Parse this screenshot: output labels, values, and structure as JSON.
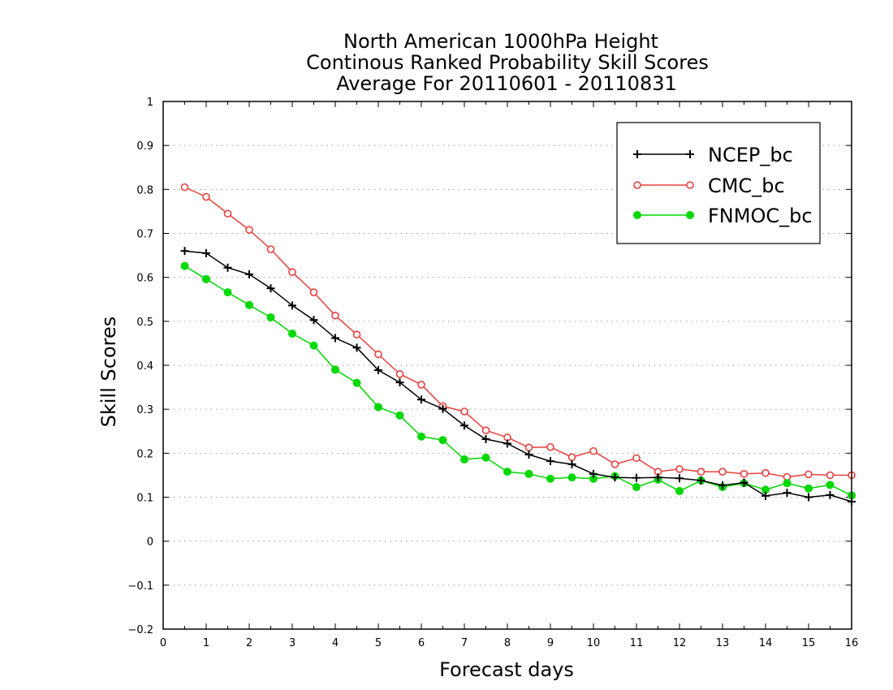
{
  "chart_data": {
    "type": "line",
    "title": [
      "North American 1000hPa Height",
      "Continous Ranked Probability Skill Scores",
      "Average For 20110601 - 20110831"
    ],
    "xlabel": "Forecast days",
    "ylabel": "Skill Scores",
    "xlim": [
      0,
      16
    ],
    "ylim": [
      -0.2,
      1
    ],
    "xticks": [
      0,
      1,
      2,
      3,
      4,
      5,
      6,
      7,
      8,
      9,
      10,
      11,
      12,
      13,
      14,
      15,
      16
    ],
    "yticks": [
      -0.2,
      -0.1,
      0,
      0.1,
      0.2,
      0.3,
      0.4,
      0.5,
      0.6,
      0.7,
      0.8,
      0.9,
      1
    ],
    "ytick_labels": [
      "−0.2",
      "−0.1",
      "0",
      "0.1",
      "0.2",
      "0.3",
      "0.4",
      "0.5",
      "0.6",
      "0.7",
      "0.8",
      "0.9",
      "1"
    ],
    "grid": "horizontal dotted",
    "legend_position": "top-right",
    "x": [
      0.5,
      1.0,
      1.5,
      2.0,
      2.5,
      3.0,
      3.5,
      4.0,
      4.5,
      5.0,
      5.5,
      6.0,
      6.5,
      7.0,
      7.5,
      8.0,
      8.5,
      9.0,
      9.5,
      10.0,
      10.5,
      11.0,
      11.5,
      12.0,
      12.5,
      13.0,
      13.5,
      14.0,
      14.5,
      15.0,
      15.5,
      16.0
    ],
    "series": [
      {
        "name": "NCEP_bc",
        "color": "#000000",
        "marker": "plus",
        "values": [
          0.66,
          0.655,
          0.622,
          0.607,
          0.575,
          0.536,
          0.503,
          0.462,
          0.44,
          0.389,
          0.361,
          0.322,
          0.301,
          0.263,
          0.232,
          0.222,
          0.197,
          0.182,
          0.175,
          0.153,
          0.145,
          0.144,
          0.145,
          0.143,
          0.138,
          0.127,
          0.133,
          0.103,
          0.11,
          0.1,
          0.105,
          0.09
        ]
      },
      {
        "name": "CMC_bc",
        "color": "#e8403c",
        "marker": "open-circle",
        "values": [
          0.805,
          0.783,
          0.745,
          0.708,
          0.664,
          0.612,
          0.566,
          0.513,
          0.47,
          0.425,
          0.38,
          0.356,
          0.307,
          0.295,
          0.252,
          0.236,
          0.213,
          0.214,
          0.191,
          0.205,
          0.175,
          0.189,
          0.158,
          0.164,
          0.158,
          0.158,
          0.153,
          0.155,
          0.146,
          0.152,
          0.15,
          0.15
        ]
      },
      {
        "name": "FNMOC_bc",
        "color": "#00d800",
        "marker": "filled-circle",
        "values": [
          0.626,
          0.596,
          0.566,
          0.537,
          0.509,
          0.472,
          0.445,
          0.39,
          0.36,
          0.305,
          0.286,
          0.238,
          0.23,
          0.186,
          0.19,
          0.158,
          0.153,
          0.142,
          0.145,
          0.142,
          0.148,
          0.123,
          0.14,
          0.114,
          0.138,
          0.123,
          0.132,
          0.117,
          0.132,
          0.12,
          0.128,
          0.104
        ]
      }
    ]
  }
}
